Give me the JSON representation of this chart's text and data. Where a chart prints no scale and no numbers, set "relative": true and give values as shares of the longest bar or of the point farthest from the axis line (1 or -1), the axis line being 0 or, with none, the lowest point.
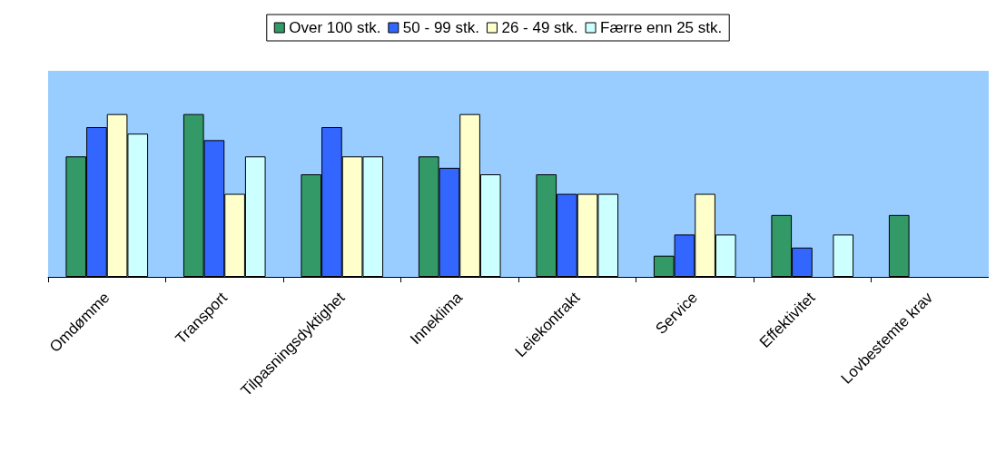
{
  "chart_data": {
    "type": "bar",
    "relative": true,
    "legend": "top",
    "grid": false,
    "categories": [
      "Omdømme",
      "Transport",
      "Tilpasningsdyktighet",
      "Inneklima",
      "Leiekontrakt",
      "Service",
      "Effektivitet",
      "Lovbestemte krav"
    ],
    "series": [
      {
        "name": "Over 100 stk.",
        "color": "#339966",
        "values": [
          0.74,
          1,
          0.63,
          0.74,
          0.63,
          0.13,
          0.38,
          0.38
        ]
      },
      {
        "name": "50 - 99 stk.",
        "color": "#3366ff",
        "values": [
          0.92,
          0.84,
          0.92,
          0.67,
          0.51,
          0.26,
          0.18,
          null
        ]
      },
      {
        "name": "26 - 49 stk.",
        "color": "#ffffcc",
        "values": [
          1,
          0.51,
          0.74,
          1,
          0.51,
          0.51,
          null,
          null
        ]
      },
      {
        "name": "Færre enn 25 stk.",
        "color": "#ccffff",
        "values": [
          0.88,
          0.74,
          0.74,
          0.63,
          0.51,
          0.26,
          0.26,
          null
        ]
      }
    ]
  }
}
